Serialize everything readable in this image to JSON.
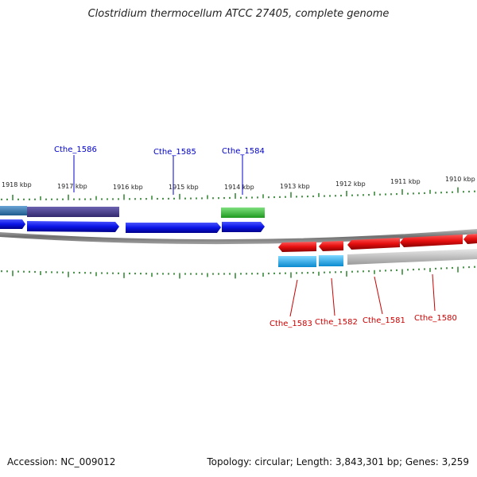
{
  "title": "Clostridium thermocellum ATCC 27405, complete genome",
  "footer": {
    "accession": "Accession: NC_009012",
    "topology": "Topology: circular; Length: 3,843,301 bp; Genes: 3,259"
  },
  "ruler": {
    "labels": [
      "1918 kbp",
      "1917 kbp",
      "1916 kbp",
      "1915 kbp",
      "1914 kbp",
      "1913 kbp",
      "1912 kbp",
      "1911 kbp",
      "1910 kbp"
    ]
  },
  "genes_forward": [
    {
      "name": "Cthe_1586",
      "color": "#0000cc"
    },
    {
      "name": "Cthe_1585",
      "color": "#0000cc"
    },
    {
      "name": "Cthe_1584",
      "color": "#0000cc"
    }
  ],
  "genes_reverse": [
    {
      "name": "Cthe_1583",
      "color": "#cc0000"
    },
    {
      "name": "Cthe_1582",
      "color": "#cc0000"
    },
    {
      "name": "Cthe_1581",
      "color": "#cc0000"
    },
    {
      "name": "Cthe_1580",
      "color": "#cc0000"
    }
  ],
  "colors": {
    "forward_cds": "#0a14e6",
    "reverse_cds": "#e60f0f",
    "backbone": "#7a7a7a",
    "ticks": "#1e7a1e",
    "cog_purple": "#4a3f8e",
    "cog_steel": "#3a78b0",
    "cog_green": "#3cc43c",
    "cog_cyan": "#19b4f0",
    "cog_gray": "#bdbdbd"
  }
}
